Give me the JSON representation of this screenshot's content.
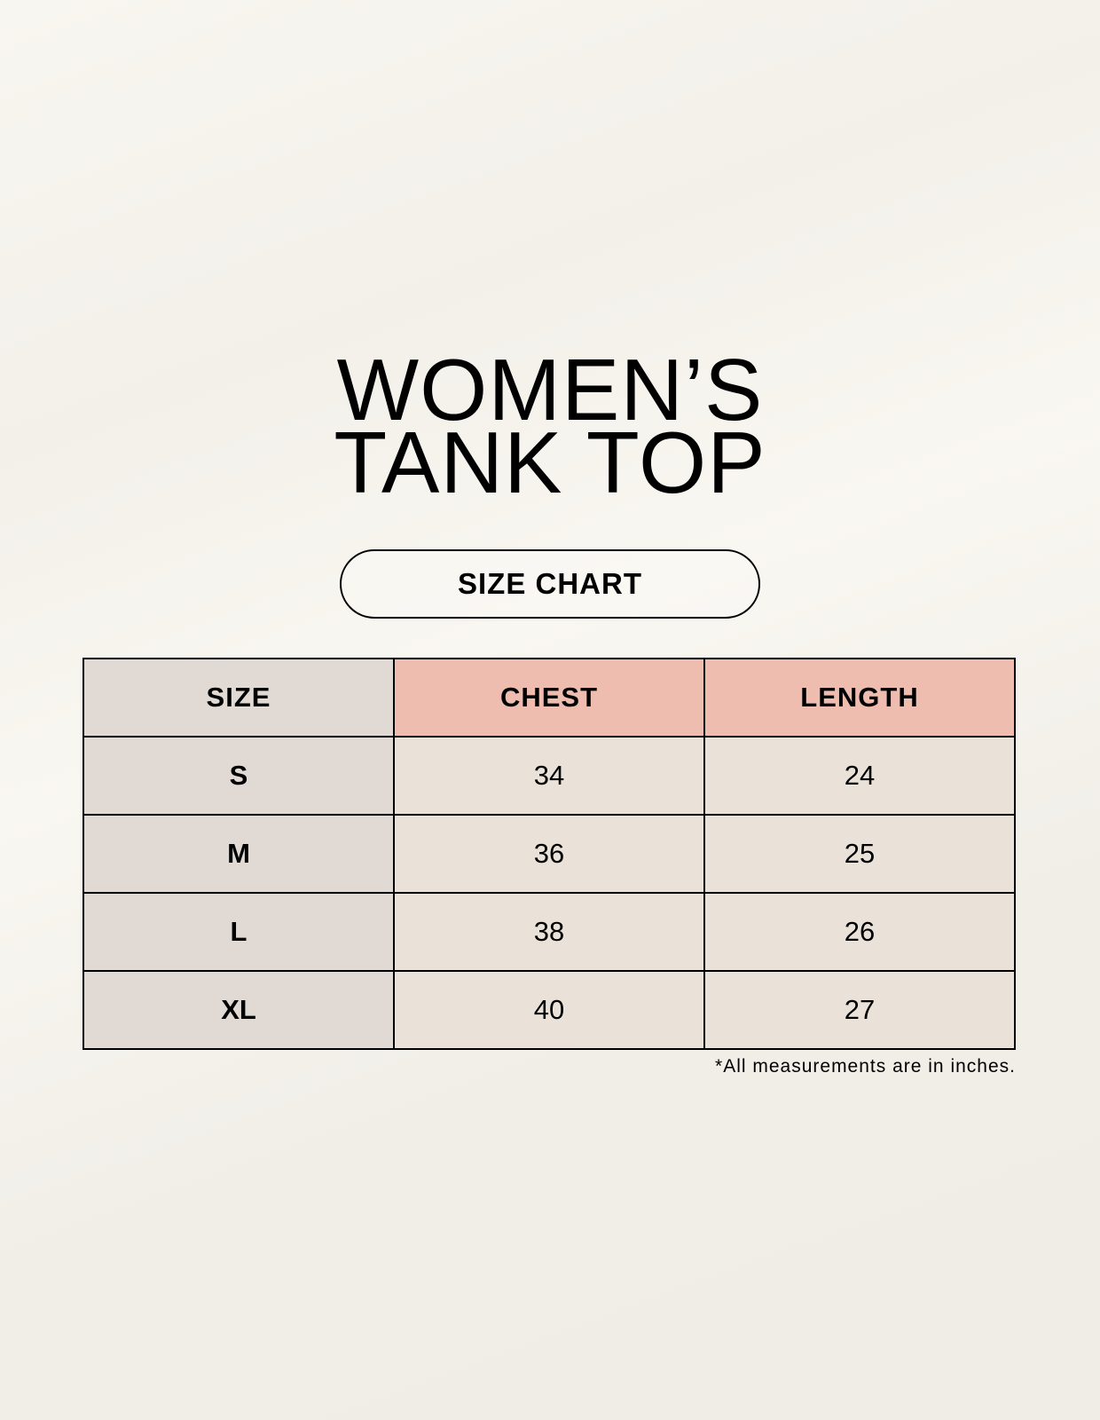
{
  "title": {
    "line1": "WOMEN’S",
    "line2": "TANK TOP"
  },
  "subtitle": "SIZE CHART",
  "table": {
    "headers": [
      "SIZE",
      "CHEST",
      "LENGTH"
    ],
    "rows": [
      [
        "S",
        "34",
        "24"
      ],
      [
        "M",
        "36",
        "25"
      ],
      [
        "L",
        "38",
        "26"
      ],
      [
        "XL",
        "40",
        "27"
      ]
    ]
  },
  "footnote": "*All measurements are in inches.",
  "colors": {
    "size_column": "#e0d9d4",
    "header_accent": "#eebdb0",
    "value_cells": "#eae2d8"
  }
}
